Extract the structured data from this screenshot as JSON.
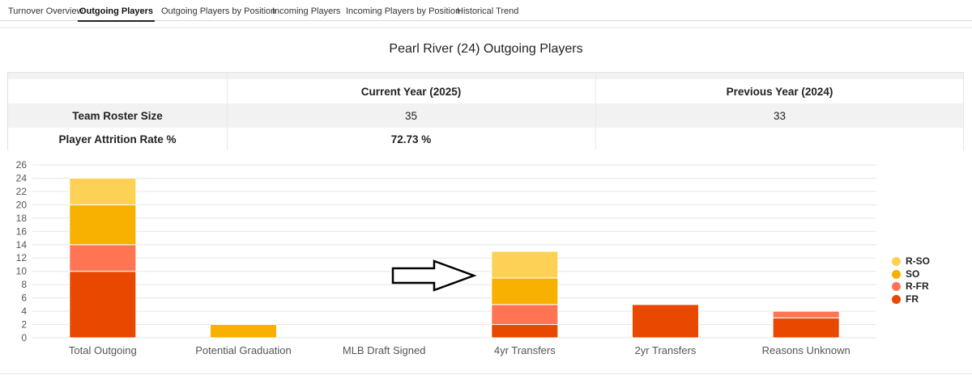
{
  "tabs": [
    {
      "label": "Turnover Overview",
      "active": false
    },
    {
      "label": "Outgoing Players",
      "active": true
    },
    {
      "label": "Outgoing Players by Position",
      "active": false
    },
    {
      "label": "Incoming Players",
      "active": false
    },
    {
      "label": "Incoming Players by Position",
      "active": false
    },
    {
      "label": "Historical Trend",
      "active": false
    }
  ],
  "report": {
    "title": "Pearl River (24) Outgoing Players"
  },
  "stats_table": {
    "headers": [
      "",
      "Current Year (2025)",
      "Previous Year (2024)"
    ],
    "rows": [
      {
        "label": "Team Roster Size",
        "current": "35",
        "previous": "33"
      },
      {
        "label": "Player Attrition Rate %",
        "current": "72.73 %",
        "previous": ""
      }
    ]
  },
  "colors": {
    "R-SO": "#fdd155",
    "SO": "#f8b100",
    "R-FR": "#ff7553",
    "FR": "#e94800",
    "grid": "#e6e6e6"
  },
  "chart_data": {
    "type": "bar",
    "stacked": true,
    "categories": [
      "Total Outgoing",
      "Potential Graduation",
      "MLB Draft Signed",
      "4yr Transfers",
      "2yr Transfers",
      "Reasons Unknown"
    ],
    "series": [
      {
        "name": "FR",
        "values": [
          10,
          0,
          0,
          2,
          5,
          3
        ]
      },
      {
        "name": "R-FR",
        "values": [
          4,
          0,
          0,
          3,
          0,
          1
        ]
      },
      {
        "name": "SO",
        "values": [
          6,
          2,
          0,
          4,
          0,
          0
        ]
      },
      {
        "name": "R-SO",
        "values": [
          4,
          0,
          0,
          4,
          0,
          0
        ]
      }
    ],
    "legend_order": [
      "R-SO",
      "SO",
      "R-FR",
      "FR"
    ],
    "ylim": [
      0,
      26
    ],
    "yticks": [
      0,
      2,
      4,
      6,
      8,
      10,
      12,
      14,
      16,
      18,
      20,
      22,
      24,
      26
    ],
    "grid": true,
    "legend_position": "right",
    "annotation": "arrow pointing to 4yr Transfers"
  }
}
